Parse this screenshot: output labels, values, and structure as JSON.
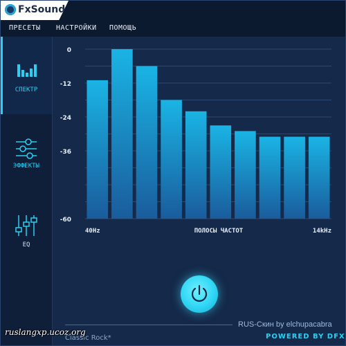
{
  "app": {
    "name": "FxSound"
  },
  "menu": {
    "items": [
      "ПРЕСЕТЫ",
      "НАСТРОЙКИ",
      "ПОМОЩЬ"
    ]
  },
  "sidebar": {
    "items": [
      {
        "label": "СПЕКТР",
        "icon": "spectrum-icon",
        "active": true
      },
      {
        "label": "ЭФФЕКТЫ",
        "icon": "sliders-icon",
        "active": false
      },
      {
        "label": "EQ",
        "icon": "eq-icon",
        "active": false
      }
    ]
  },
  "colors": {
    "accent": "#2bd0f0",
    "bar_top": "#1ab4e4",
    "bar_bottom": "#1a5c9c",
    "background": "#15294a"
  },
  "chart_data": {
    "type": "bar",
    "title": "",
    "xlabel": "ПОЛОСЫ ЧАСТОТ",
    "ylabel": "",
    "x_start_label": "40Hz",
    "x_end_label": "14kHz",
    "ylim": [
      -60,
      0
    ],
    "yticks": [
      0,
      -12,
      -24,
      -36,
      -60
    ],
    "ytick_labels": [
      "0",
      "-12",
      "-24",
      "-36",
      "-60"
    ],
    "grid": true,
    "values": [
      -11,
      0,
      -6,
      -18,
      -22,
      -27,
      -29,
      -31,
      -31,
      -31
    ]
  },
  "footer": {
    "preset": "Classic Rock*",
    "skin": "RUS-Скин by elchupacabra",
    "powered": "POWERED BY DFX"
  },
  "watermark": "ruslangxp.ucoz.org"
}
